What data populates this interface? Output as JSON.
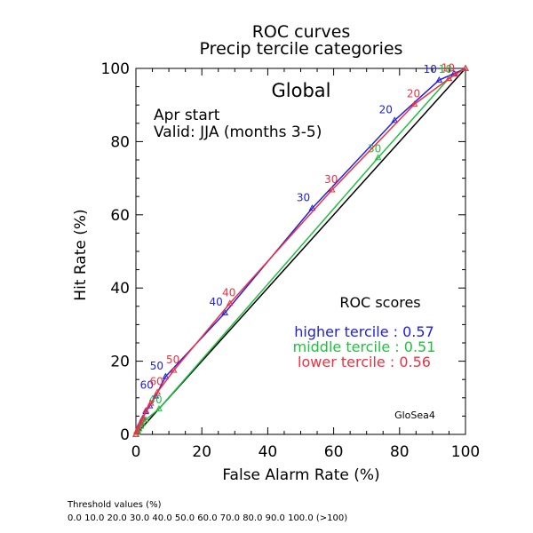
{
  "footer": {
    "threshold_heading": "Threshold values (%)",
    "threshold_list": "0.0 10.0 20.0 30.0 40.0 50.0 60.0 70.0 80.0 90.0 100.0 (>100)"
  },
  "chart_data": {
    "type": "line",
    "title": "ROC curves",
    "subtitle": "Precip tercile categories",
    "region": "Global",
    "start": "Apr start",
    "valid": "Valid: JJA (months 3-5)",
    "xlabel": "False Alarm Rate (%)",
    "ylabel": "Hit Rate (%)",
    "xlim": [
      0,
      100
    ],
    "ylim": [
      0,
      100
    ],
    "xticks": [
      0,
      20,
      40,
      60,
      80,
      100
    ],
    "yticks": [
      0,
      20,
      40,
      60,
      80,
      100
    ],
    "grid": false,
    "model": "GloSea4",
    "scores_heading": "ROC scores",
    "diagonal": true,
    "series": [
      {
        "name": "higher tercile",
        "score_label": "higher tercile : 0.57",
        "color": "#2020e0",
        "x": [
          0,
          0.3,
          0.7,
          1.3,
          2.0,
          3.0,
          4.2,
          6.0,
          9.0,
          27.0,
          53.5,
          78.5,
          92.0,
          96.5,
          100
        ],
        "y": [
          0,
          0.7,
          1.6,
          3.0,
          4.3,
          6.2,
          7.8,
          10.5,
          15.8,
          33.2,
          61.8,
          85.8,
          96.8,
          98.6,
          100
        ],
        "labels": [
          "",
          "",
          "",
          "",
          "",
          "",
          "",
          "60",
          "50",
          "40",
          "30",
          "20",
          "10",
          "",
          ""
        ]
      },
      {
        "name": "middle tercile",
        "score_label": "middle tercile : 0.51",
        "color": "#20c040",
        "x": [
          0,
          0.3,
          0.6,
          1.0,
          1.5,
          2.0,
          3.0,
          7.0,
          73.5,
          95.0,
          100
        ],
        "y": [
          0,
          0.5,
          1.0,
          1.5,
          2.2,
          3.0,
          4.0,
          7.0,
          75.6,
          97.3,
          100
        ],
        "labels": [
          "",
          "",
          "",
          "",
          "",
          "",
          "",
          "40",
          "30",
          "10",
          ""
        ]
      },
      {
        "name": "lower tercile",
        "score_label": "lower tercile : 0.56",
        "color": "#f03040",
        "x": [
          0,
          0.3,
          0.8,
          1.5,
          2.2,
          3.0,
          4.5,
          6.5,
          11.5,
          28.5,
          59.5,
          84.5,
          95.0,
          97.0,
          100
        ],
        "y": [
          0,
          0.9,
          2.0,
          3.2,
          4.5,
          6.5,
          8.5,
          11.5,
          17.5,
          35.8,
          66.8,
          90.2,
          97.2,
          98.4,
          100
        ],
        "labels": [
          "",
          "",
          "",
          "",
          "",
          "",
          "",
          "60",
          "50",
          "40",
          "30",
          "20",
          "10",
          "",
          ""
        ]
      }
    ]
  }
}
